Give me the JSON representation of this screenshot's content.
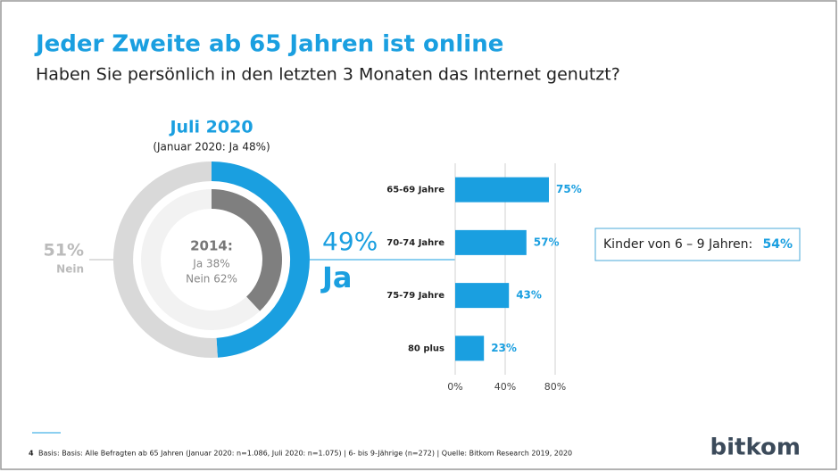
{
  "title": "Jeder Zweite ab 65 Jahren ist online",
  "subtitle": "Haben Sie persönlich in den letzten 3 Monaten das Internet genutzt?",
  "chart_data": [
    {
      "type": "donut",
      "title": "Juli 2020",
      "subtitle": "(Januar 2020: Ja  48%)",
      "categories": [
        "Ja",
        "Nein"
      ],
      "values": [
        49,
        51
      ],
      "value_labels": [
        "49%",
        "51%"
      ],
      "colors": [
        "#1a9fe0",
        "#d9d9d9"
      ]
    },
    {
      "type": "donut",
      "title": "2014:",
      "categories": [
        "Ja",
        "Nein"
      ],
      "values": [
        38,
        62
      ],
      "value_labels": [
        "Ja 38%",
        "Nein 62%"
      ],
      "colors": [
        "#7f7f7f",
        "#f2f2f2"
      ]
    },
    {
      "type": "hbar",
      "categories": [
        "65-69 Jahre",
        "70-74 Jahre",
        "75-79 Jahre",
        "80 plus"
      ],
      "values": [
        75,
        57,
        43,
        23
      ],
      "value_labels": [
        "75%",
        "57%",
        "43%",
        "23%"
      ],
      "color": "#1a9fe0",
      "xlim": [
        0,
        80
      ],
      "xticks": [
        {
          "value": 0,
          "label": "0%"
        },
        {
          "value": 40,
          "label": "40%"
        },
        {
          "value": 80,
          "label": "80%"
        }
      ],
      "grid": true
    }
  ],
  "callout": {
    "text": "Kinder von 6 – 9 Jahren:",
    "value_label": "54%"
  },
  "page_number": "4",
  "footnote": "Basis: Basis: Alle Befragten ab 65 Jahren (Januar 2020: n=1.086, Juli 2020: n=1.075) | 6- bis 9-Jährige (n=272) | Quelle: Bitkom Research 2019, 2020",
  "logo": "bitkom"
}
